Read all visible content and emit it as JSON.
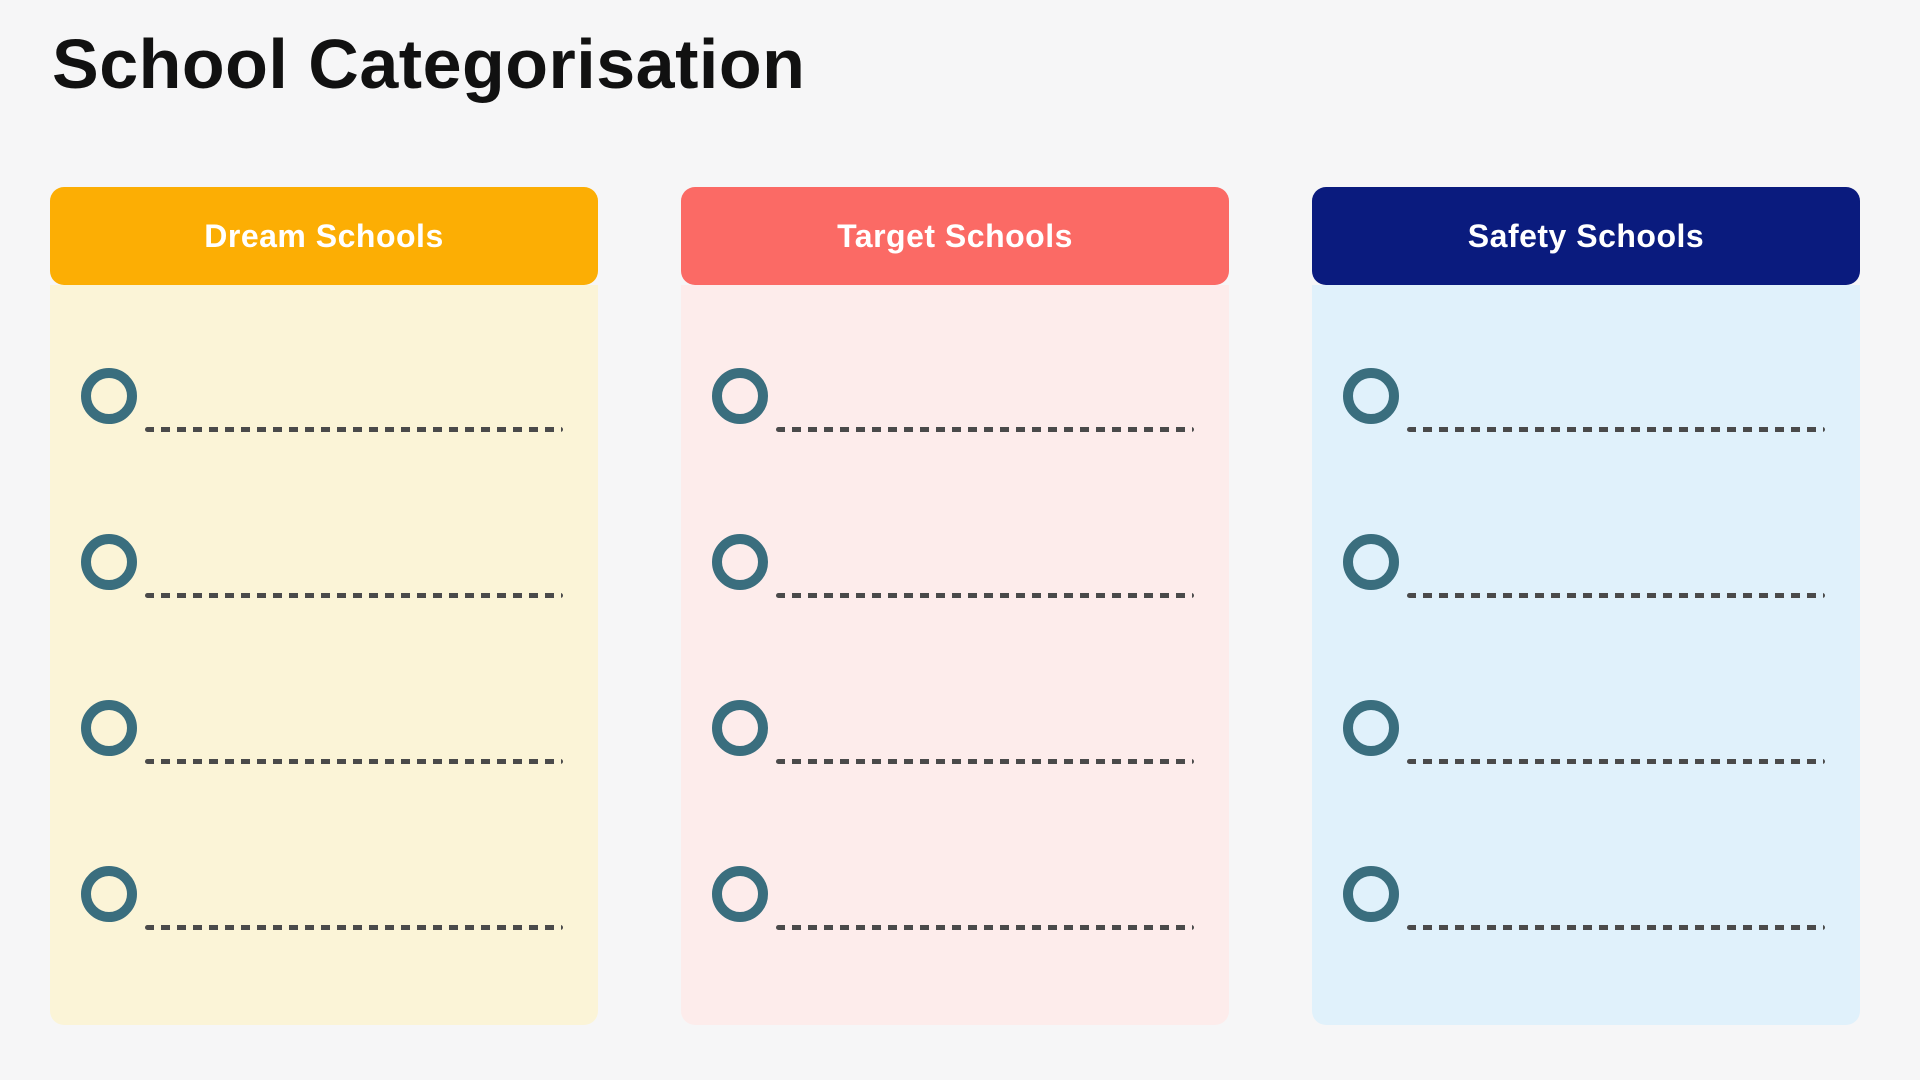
{
  "page": {
    "title": "School Categorisation"
  },
  "theme": {
    "background": "#F6F6F7",
    "title_color": "#111111",
    "circle_color": "#3A6E7E",
    "line_color": "#4A4A4A",
    "header_text_color": "#FFFFFF"
  },
  "columns": [
    {
      "id": "dream-schools",
      "label": "Dream Schools",
      "header_color": "#FCAE04",
      "body_color": "#FBF4D7",
      "blanks": 4
    },
    {
      "id": "target-schools",
      "label": "Target Schools",
      "header_color": "#FB6A65",
      "body_color": "#FDECEB",
      "blanks": 4
    },
    {
      "id": "safety-schools",
      "label": "Safety Schools",
      "header_color": "#0A1B7E",
      "body_color": "#E0F1FB",
      "blanks": 4
    }
  ]
}
